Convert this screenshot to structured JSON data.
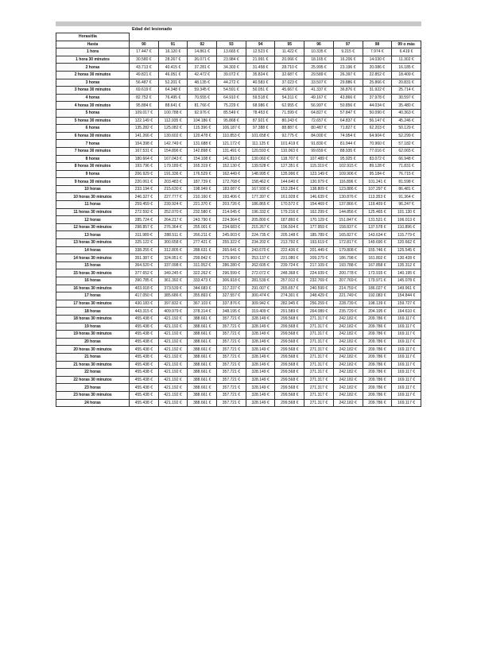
{
  "caption": "Edad del lesionado",
  "header": {
    "row_label_top": "Horas/día",
    "row_label": "Hasta"
  },
  "columns": [
    "90",
    "91",
    "92",
    "93",
    "94",
    "95",
    "96",
    "97",
    "98",
    "99 o más"
  ],
  "currency": "€",
  "rows": [
    {
      "label": "1 hora",
      "values": [
        "17.447",
        "16.120",
        "14.861",
        "13.665",
        "12.523",
        "11.422",
        "10.335",
        "9.215",
        "7.974",
        "6.419"
      ]
    },
    {
      "label": "1 hora 30 minutos",
      "values": [
        "30.580",
        "28.267",
        "26.071",
        "23.984",
        "21.991",
        "20.066",
        "18.165",
        "16.206",
        "14.030",
        "11.302"
      ]
    },
    {
      "label": "2 horas",
      "values": [
        "43.713",
        "40.415",
        "37.281",
        "34.303",
        "31.458",
        "28.710",
        "25.995",
        "23.196",
        "20.086",
        "16.185"
      ]
    },
    {
      "label": "2 horas 30 minutos",
      "values": [
        "49.821",
        "46.051",
        "42.472",
        "39.072",
        "35.824",
        "32.687",
        "29.589",
        "26.397",
        "22.852",
        "18.409"
      ]
    },
    {
      "label": "3 horas",
      "values": [
        "56.487",
        "52.201",
        "48.135",
        "44.272",
        "40.583",
        "37.023",
        "33.507",
        "29.886",
        "25.866",
        "20.831"
      ]
    },
    {
      "label": "3 horas 30 minutos",
      "values": [
        "69.619",
        "64.348",
        "59.345",
        "54.591",
        "50.051",
        "45.667",
        "41.337",
        "36.876",
        "31.922",
        "25.714"
      ]
    },
    {
      "label": "4 horas",
      "values": [
        "82.752",
        "76.495",
        "70.555",
        "64.910",
        "59.518",
        "54.311",
        "49.167",
        "43.866",
        "37.978",
        "30.597"
      ]
    },
    {
      "label": "4 horas 30 minutos",
      "values": [
        "95.884",
        "88.641",
        "81.766",
        "75.229",
        "68.986",
        "62.955",
        "56.997",
        "50.856",
        "44.034",
        "35.480"
      ]
    },
    {
      "label": "5 horas",
      "values": [
        "109.017",
        "100.788",
        "92.976",
        "85.549",
        "78.453",
        "71.599",
        "64.827",
        "57.847",
        "50.090",
        "40.363"
      ]
    },
    {
      "label": "5 horas 30 minutos",
      "values": [
        "122.149",
        "112.935",
        "104.186",
        "95.868",
        "87.921",
        "80.243",
        "72.657",
        "64.837",
        "56.147",
        "45.246"
      ]
    },
    {
      "label": "6 horas",
      "values": [
        "135.282",
        "125.082",
        "115.396",
        "106.187",
        "97.388",
        "88.887",
        "80.487",
        "71.827",
        "62.203",
        "50.129"
      ]
    },
    {
      "label": "6 horas 30 minutos",
      "values": [
        "141.266",
        "130.602",
        "120.478",
        "110.853",
        "101.658",
        "92.775",
        "84.000",
        "74.954",
        "64.904",
        "52.299"
      ]
    },
    {
      "label": "7 horas",
      "values": [
        "154.398",
        "142.749",
        "131.688",
        "121.172",
        "111.125",
        "101.419",
        "91.830",
        "81.944",
        "70.960",
        "57.182"
      ]
    },
    {
      "label": "7 horas 30 minutos",
      "values": [
        "167.531",
        "154.896",
        "142.898",
        "131.491",
        "120.593",
        "110.063",
        "99.659",
        "88.935",
        "77.016",
        "62.065"
      ]
    },
    {
      "label": "8 horas",
      "values": [
        "180.664",
        "167.043",
        "154.108",
        "141.810",
        "130.060",
        "118.707",
        "107.489",
        "95.925",
        "83.072",
        "66.948"
      ]
    },
    {
      "label": "8 horas 30 minutos",
      "values": [
        "193.796",
        "179.189",
        "165.319",
        "152.130",
        "139.528",
        "127.351",
        "115.319",
        "102.915",
        "89.128",
        "71.831"
      ]
    },
    {
      "label": "9 horas",
      "values": [
        "206.929",
        "191.336",
        "176.529",
        "162.449",
        "148.995",
        "135.996",
        "123.149",
        "109.906",
        "95.184",
        "76.715"
      ]
    },
    {
      "label": "9 horas 30 minutos",
      "values": [
        "220.061",
        "203.483",
        "187.739",
        "172.768",
        "158.462",
        "144.640",
        "130.979",
        "116.896",
        "101.241",
        "81.598"
      ]
    },
    {
      "label": "10 horas",
      "values": [
        "233.194",
        "215.630",
        "198.949",
        "183.087",
        "167.930",
        "153.284",
        "138.809",
        "123.886",
        "107.297",
        "86.481"
      ]
    },
    {
      "label": "10 horas 30 minutos",
      "values": [
        "246.327",
        "227.777",
        "210.160",
        "193.406",
        "177.397",
        "161.928",
        "146.639",
        "130.876",
        "113.353",
        "91.364"
      ]
    },
    {
      "label": "11 horas",
      "values": [
        "259.459",
        "239.924",
        "221.370",
        "203.726",
        "186.865",
        "170.572",
        "154.469",
        "137.866",
        "119.409",
        "96.247"
      ]
    },
    {
      "label": "11 horas 30 minutos",
      "values": [
        "272.592",
        "252.070",
        "232.580",
        "214.045",
        "196.332",
        "179.216",
        "162.299",
        "144.856",
        "125.465",
        "101.130"
      ]
    },
    {
      "label": "12 horas",
      "values": [
        "285.724",
        "264.217",
        "243.790",
        "224.364",
        "205.800",
        "187.860",
        "170.129",
        "151.847",
        "131.521",
        "106.013"
      ]
    },
    {
      "label": "12 horas 30 minutos",
      "values": [
        "298.857",
        "276.364",
        "255.001",
        "234.683",
        "215.267",
        "196.504",
        "177.959",
        "158.837",
        "137.578",
        "110.896"
      ]
    },
    {
      "label": "13 horas",
      "values": [
        "311.989",
        "288.511",
        "266.211",
        "245.003",
        "224.735",
        "205.148",
        "185.789",
        "165.827",
        "143.634",
        "115.779"
      ]
    },
    {
      "label": "13 horas 30 minutos",
      "values": [
        "325.122",
        "300.658",
        "277.421",
        "255.322",
        "234.202",
        "213.792",
        "193.619",
        "172.817",
        "149.690",
        "120.662"
      ]
    },
    {
      "label": "14 horas",
      "values": [
        "338.255",
        "312.805",
        "288.631",
        "265.641",
        "243.670",
        "222.436",
        "201.449",
        "179.808",
        "155.746",
        "125.545"
      ]
    },
    {
      "label": "14 horas 30 minutos",
      "values": [
        "351.387",
        "324.951",
        "299.842",
        "275.960",
        "253.137",
        "231.080",
        "209.279",
        "186.798",
        "161.802",
        "130.428"
      ]
    },
    {
      "label": "15 horas",
      "values": [
        "364.520",
        "337.098",
        "311.052",
        "286.280",
        "262.605",
        "239.724",
        "217.109",
        "193.788",
        "167.858",
        "135.312"
      ]
    },
    {
      "label": "15 horas 30 minutos",
      "values": [
        "377.652",
        "349.245",
        "322.262",
        "296.599",
        "272.072",
        "248.368",
        "224.939",
        "200.778",
        "173.915",
        "140.195"
      ]
    },
    {
      "label": "16 horas",
      "values": [
        "390.785",
        "361.392",
        "333.473",
        "306.918",
        "281.539",
        "257.012",
        "232.769",
        "207.769",
        "179.971",
        "145.078"
      ]
    },
    {
      "label": "16 horas 30 minutos",
      "values": [
        "403.918",
        "373.539",
        "344.683",
        "317.237",
        "291.007",
        "265.657",
        "240.599",
        "214.759",
        "186.027",
        "149.961"
      ]
    },
    {
      "label": "17 horas",
      "values": [
        "417.050",
        "385.686",
        "355.893",
        "327.557",
        "300.474",
        "274.301",
        "248.429",
        "221.749",
        "192.083",
        "154.844"
      ]
    },
    {
      "label": "17 horas 30 minutos",
      "values": [
        "430.183",
        "397.832",
        "367.103",
        "337.876",
        "309.942",
        "282.945",
        "256.259",
        "228.739",
        "198.139",
        "159.727"
      ]
    },
    {
      "label": "18 horas",
      "values": [
        "443.315",
        "409.979",
        "378.314",
        "348.195",
        "319.409",
        "291.589",
        "264.089",
        "235.729",
        "204.195",
        "164.610"
      ]
    },
    {
      "label": "18 horas 30 minutos",
      "values": [
        "455.438",
        "421.192",
        "388.661",
        "357.721",
        "328.149",
        "299.568",
        "271.317",
        "242.182",
        "209.786",
        "169.117"
      ]
    },
    {
      "label": "19 horas",
      "values": [
        "455.438",
        "421.192",
        "388.661",
        "357.721",
        "328.149",
        "299.568",
        "271.317",
        "242.182",
        "209.786",
        "169.117"
      ]
    },
    {
      "label": "19 horas 30 minutos",
      "values": [
        "455.438",
        "421.192",
        "388.661",
        "357.721",
        "328.149",
        "299.568",
        "271.317",
        "242.182",
        "209.786",
        "169.117"
      ]
    },
    {
      "label": "20 horas",
      "values": [
        "455.438",
        "421.192",
        "388.661",
        "357.721",
        "328.149",
        "299.568",
        "271.317",
        "242.182",
        "209.786",
        "169.117"
      ]
    },
    {
      "label": "20 horas 30 minutos",
      "values": [
        "455.438",
        "421.192",
        "388.661",
        "357.721",
        "328.149",
        "299.568",
        "271.317",
        "242.182",
        "209.786",
        "169.117"
      ]
    },
    {
      "label": "21 horas",
      "values": [
        "455.438",
        "421.192",
        "388.661",
        "357.721",
        "328.149",
        "299.568",
        "271.317",
        "242.182",
        "209.786",
        "169.117"
      ]
    },
    {
      "label": "21 horas 30 minutos",
      "values": [
        "455.438",
        "421.192",
        "388.661",
        "357.721",
        "328.149",
        "299.568",
        "271.317",
        "242.182",
        "209.786",
        "169.117"
      ]
    },
    {
      "label": "22 horas",
      "values": [
        "455.438",
        "421.192",
        "388.661",
        "357.721",
        "328.149",
        "299.568",
        "271.317",
        "242.182",
        "209.786",
        "169.117"
      ]
    },
    {
      "label": "22 horas 30 minutos",
      "values": [
        "455.438",
        "421.192",
        "388.661",
        "357.721",
        "328.149",
        "299.568",
        "271.317",
        "242.182",
        "209.786",
        "169.117"
      ]
    },
    {
      "label": "23 horas",
      "values": [
        "455.438",
        "421.192",
        "388.661",
        "357.721",
        "328.149",
        "299.568",
        "271.317",
        "242.182",
        "209.786",
        "169.117"
      ]
    },
    {
      "label": "23 horas 30 minutos",
      "values": [
        "455.438",
        "421.192",
        "388.661",
        "357.721",
        "328.149",
        "299.568",
        "271.317",
        "242.182",
        "209.786",
        "169.117"
      ]
    },
    {
      "label": "24 horas",
      "values": [
        "455.438",
        "421.192",
        "388.661",
        "357.721",
        "328.149",
        "299.568",
        "271.317",
        "242.182",
        "209.786",
        "169.117"
      ]
    }
  ]
}
